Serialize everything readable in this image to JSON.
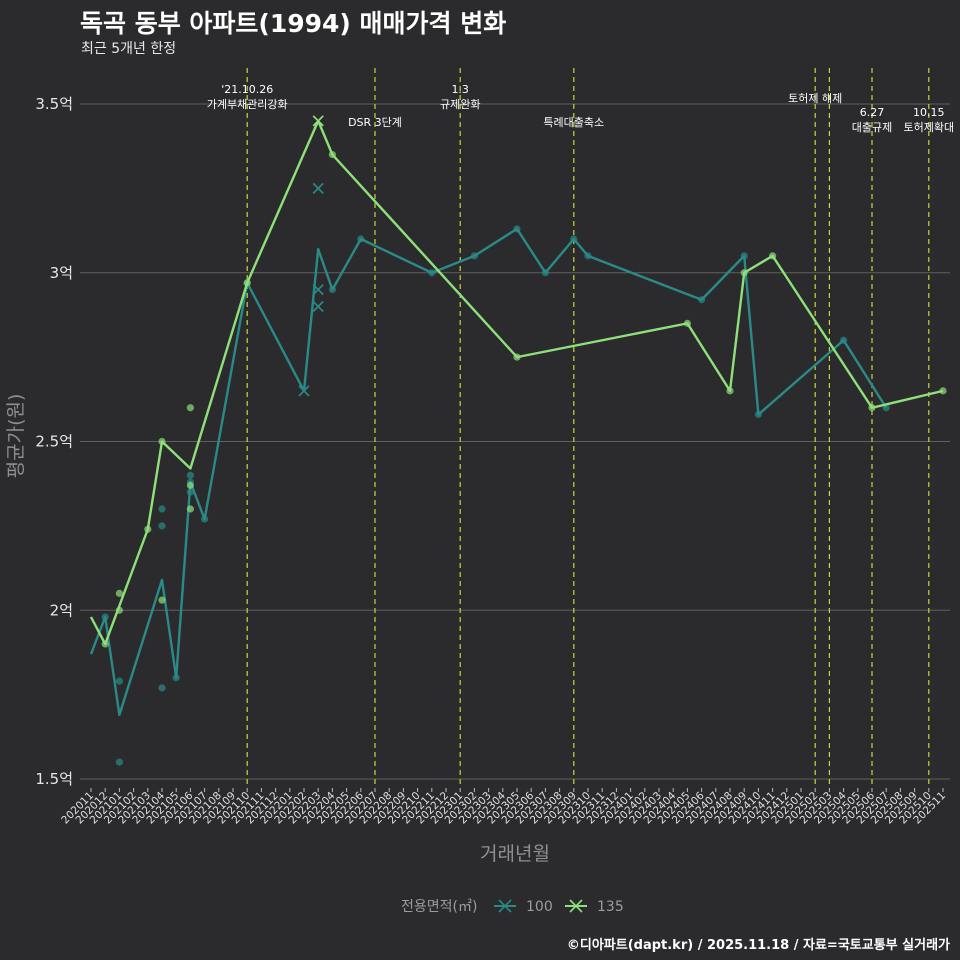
{
  "header": {
    "title": "독곡 동부 아파트(1994) 매매가격 변화",
    "subtitle": "최근 5개년 한정"
  },
  "footer": {
    "caption": "©디아파트(dapt.kr) / 2025.11.18 / 자료=국토교통부 실거래가"
  },
  "colors": {
    "background": "#2b2b2d",
    "grid": "#5f5f5f",
    "series_100": "#2a8a88",
    "series_135": "#8fe07a",
    "event_line": "#c6d63a"
  },
  "chart_data": {
    "type": "line",
    "title": "독곡 동부 아파트(1994) 매매가격 변화",
    "xlabel": "거래년월",
    "ylabel": "평균가(원)",
    "ylim": [
      1.45,
      3.6
    ],
    "y_ticks": [
      1.5,
      2.0,
      2.5,
      3.0,
      3.5
    ],
    "y_tick_labels": [
      "1.5억",
      "2억",
      "2.5억",
      "3억",
      "3.5억"
    ],
    "grid": true,
    "categories": [
      "202011",
      "202012",
      "202101",
      "202102",
      "202103",
      "202104",
      "202105",
      "202106",
      "202107",
      "202108",
      "202109",
      "202110",
      "202111",
      "202112",
      "202201",
      "202202",
      "202203",
      "202204",
      "202205",
      "202206",
      "202207",
      "202208",
      "202209",
      "202210",
      "202211",
      "202212",
      "202301",
      "202302",
      "202303",
      "202304",
      "202305",
      "202306",
      "202307",
      "202308",
      "202309",
      "202310",
      "202311",
      "202312",
      "202401",
      "202402",
      "202403",
      "202404",
      "202405",
      "202406",
      "202407",
      "202408",
      "202409",
      "202410",
      "202411",
      "202412",
      "202501",
      "202502",
      "202503",
      "202504",
      "202505",
      "202506",
      "202507",
      "202508",
      "202509",
      "202510",
      "202511"
    ],
    "series": [
      {
        "name": "100",
        "line": [
          {
            "x": "202011",
            "y": 1.87
          },
          {
            "x": "202012",
            "y": 1.98
          },
          {
            "x": "202101",
            "y": 1.69
          },
          {
            "x": "202104",
            "y": 2.09
          },
          {
            "x": "202105",
            "y": 1.8
          },
          {
            "x": "202106",
            "y": 2.38
          },
          {
            "x": "202107",
            "y": 2.27
          },
          {
            "x": "202110",
            "y": 2.97
          },
          {
            "x": "202202",
            "y": 2.65
          },
          {
            "x": "202203",
            "y": 3.07
          },
          {
            "x": "202204",
            "y": 2.95
          },
          {
            "x": "202206",
            "y": 3.1
          },
          {
            "x": "202211",
            "y": 3.0
          },
          {
            "x": "202302",
            "y": 3.05
          },
          {
            "x": "202305",
            "y": 3.13
          },
          {
            "x": "202307",
            "y": 3.0
          },
          {
            "x": "202309",
            "y": 3.1
          },
          {
            "x": "202310",
            "y": 3.05
          },
          {
            "x": "202406",
            "y": 2.92
          },
          {
            "x": "202409",
            "y": 3.05
          },
          {
            "x": "202410",
            "y": 2.58
          },
          {
            "x": "202504",
            "y": 2.8
          },
          {
            "x": "202507",
            "y": 2.6
          }
        ],
        "dots": [
          {
            "x": "202012",
            "y": 1.98
          },
          {
            "x": "202101",
            "y": 1.79
          },
          {
            "x": "202101",
            "y": 1.55
          },
          {
            "x": "202104",
            "y": 2.3
          },
          {
            "x": "202104",
            "y": 2.25
          },
          {
            "x": "202104",
            "y": 1.77
          },
          {
            "x": "202105",
            "y": 1.8
          },
          {
            "x": "202106",
            "y": 2.4
          },
          {
            "x": "202106",
            "y": 2.38
          },
          {
            "x": "202106",
            "y": 2.35
          },
          {
            "x": "202107",
            "y": 2.27
          },
          {
            "x": "202110",
            "y": 2.97
          },
          {
            "x": "202204",
            "y": 2.95
          },
          {
            "x": "202206",
            "y": 3.1
          },
          {
            "x": "202211",
            "y": 3.0
          },
          {
            "x": "202302",
            "y": 3.05
          },
          {
            "x": "202305",
            "y": 3.13
          },
          {
            "x": "202307",
            "y": 3.0
          },
          {
            "x": "202309",
            "y": 3.1
          },
          {
            "x": "202310",
            "y": 3.05
          },
          {
            "x": "202406",
            "y": 2.92
          },
          {
            "x": "202409",
            "y": 3.05
          },
          {
            "x": "202410",
            "y": 2.58
          },
          {
            "x": "202504",
            "y": 2.8
          },
          {
            "x": "202507",
            "y": 2.6
          }
        ],
        "crosses": [
          {
            "x": "202202",
            "y": 2.65
          },
          {
            "x": "202203",
            "y": 3.25
          },
          {
            "x": "202203",
            "y": 2.95
          },
          {
            "x": "202203",
            "y": 2.9
          }
        ]
      },
      {
        "name": "135",
        "line": [
          {
            "x": "202011",
            "y": 1.98
          },
          {
            "x": "202012",
            "y": 1.9
          },
          {
            "x": "202103",
            "y": 2.24
          },
          {
            "x": "202104",
            "y": 2.5
          },
          {
            "x": "202106",
            "y": 2.42
          },
          {
            "x": "202110",
            "y": 2.97
          },
          {
            "x": "202203",
            "y": 3.45
          },
          {
            "x": "202204",
            "y": 3.35
          },
          {
            "x": "202305",
            "y": 2.75
          },
          {
            "x": "202405",
            "y": 2.85
          },
          {
            "x": "202408",
            "y": 2.65
          },
          {
            "x": "202409",
            "y": 3.0
          },
          {
            "x": "202411",
            "y": 3.05
          },
          {
            "x": "202506",
            "y": 2.6
          },
          {
            "x": "202511",
            "y": 2.65
          }
        ],
        "dots": [
          {
            "x": "202012",
            "y": 1.9
          },
          {
            "x": "202101",
            "y": 2.05
          },
          {
            "x": "202101",
            "y": 2.0
          },
          {
            "x": "202103",
            "y": 2.24
          },
          {
            "x": "202104",
            "y": 2.5
          },
          {
            "x": "202104",
            "y": 2.03
          },
          {
            "x": "202106",
            "y": 2.6
          },
          {
            "x": "202106",
            "y": 2.37
          },
          {
            "x": "202106",
            "y": 2.3
          },
          {
            "x": "202110",
            "y": 2.97
          },
          {
            "x": "202204",
            "y": 3.35
          },
          {
            "x": "202305",
            "y": 2.75
          },
          {
            "x": "202405",
            "y": 2.85
          },
          {
            "x": "202408",
            "y": 2.65
          },
          {
            "x": "202409",
            "y": 3.0
          },
          {
            "x": "202411",
            "y": 3.05
          },
          {
            "x": "202506",
            "y": 2.6
          },
          {
            "x": "202511",
            "y": 2.65
          }
        ],
        "crosses": [
          {
            "x": "202203",
            "y": 3.45
          }
        ]
      }
    ],
    "events": [
      {
        "x": "202110",
        "lines": [
          "'21.10.26",
          "가계부채관리강화"
        ],
        "level": 0
      },
      {
        "x": "202207",
        "lines": [
          "DSR 3단계"
        ],
        "level": 2
      },
      {
        "x": "202301",
        "lines": [
          "1.3",
          "규제완화"
        ],
        "level": 0
      },
      {
        "x": "202309",
        "lines": [
          "특례대출축소"
        ],
        "level": 2
      },
      {
        "x": "202502",
        "lines": [
          "토허제 해제"
        ],
        "level": 1
      },
      {
        "x": "202503",
        "lines": [],
        "level": 1
      },
      {
        "x": "202506",
        "lines": [
          "6.27",
          "대출규제"
        ],
        "level": 3
      },
      {
        "x": "202510",
        "lines": [
          "10.15",
          "토허제확대"
        ],
        "level": 3
      }
    ],
    "legend": {
      "title": "전용면적(㎡)",
      "position": "bottom",
      "entries": [
        "100",
        "135"
      ]
    }
  }
}
